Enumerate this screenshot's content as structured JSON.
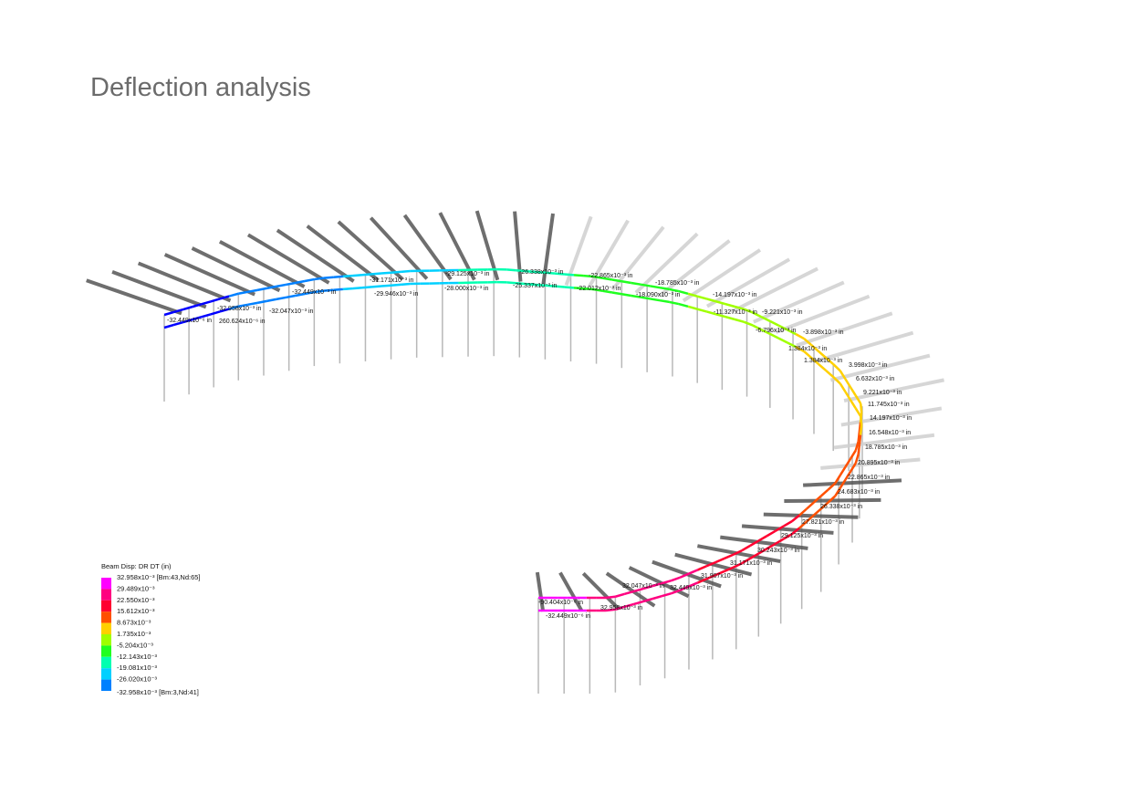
{
  "header": {
    "title": "Deflection analysis"
  },
  "legend": {
    "title": "Beam Disp: DR DT  (in)",
    "entries": [
      "32.958x10⁻³ [Bm:43,Nd:65]",
      "29.489x10⁻³",
      "22.550x10⁻³",
      "15.612x10⁻³",
      "8.673x10⁻³",
      "1.735x10⁻³",
      "-5.204x10⁻³",
      "-12.143x10⁻³",
      "-19.081x10⁻³",
      "-26.020x10⁻³",
      "-32.958x10⁻³ [Bm:3,Nd:41]"
    ]
  },
  "labels": [
    "-32.449x10⁻⁶ in",
    "-32.958x10⁻³ in",
    "260.624x10⁻⁶ in",
    "-32.047x10⁻³ in",
    "-32.449x10⁻³ in",
    "-31.171x10⁻³ in",
    "-29.946x10⁻³ in",
    "-29.125x10⁻³ in",
    "-28.000x10⁻³ in",
    "-26.338x10⁻³ in",
    "-25.337x10⁻³ in",
    "-22.865x10⁻³ in",
    "-22.012x10⁻³ in",
    "-18.785x10⁻³ in",
    "-18.090x10⁻³ in",
    "-14.197x10⁻³ in",
    "-11.327x10⁻³ in",
    "-9.221x10⁻³ in",
    "-6.796x10⁻³ in",
    "-3.898x10⁻³ in",
    "1.384x10⁻³ in",
    "1.384x10⁻³ in",
    "3.998x10⁻³ in",
    "6.632x10⁻³ in",
    "9.221x10⁻³ in",
    "11.745x10⁻³ in",
    "14.197x10⁻³ in",
    "16.548x10⁻³ in",
    "18.785x10⁻³ in",
    "20.895x10⁻³ in",
    "22.865x10⁻³ in",
    "24.683x10⁻³ in",
    "26.338x10⁻³ in",
    "27.821x10⁻³ in",
    "29.125x10⁻³ in",
    "30.243x10⁻³ in",
    "31.171x10⁻³ in",
    "31.907x10⁻³ in",
    "32.449x10⁻³ in",
    "32.047x10⁻³ in",
    "32.958x10⁻³ in",
    "-90.404x10⁻⁶ in",
    "-32.449x10⁻⁶ in"
  ]
}
